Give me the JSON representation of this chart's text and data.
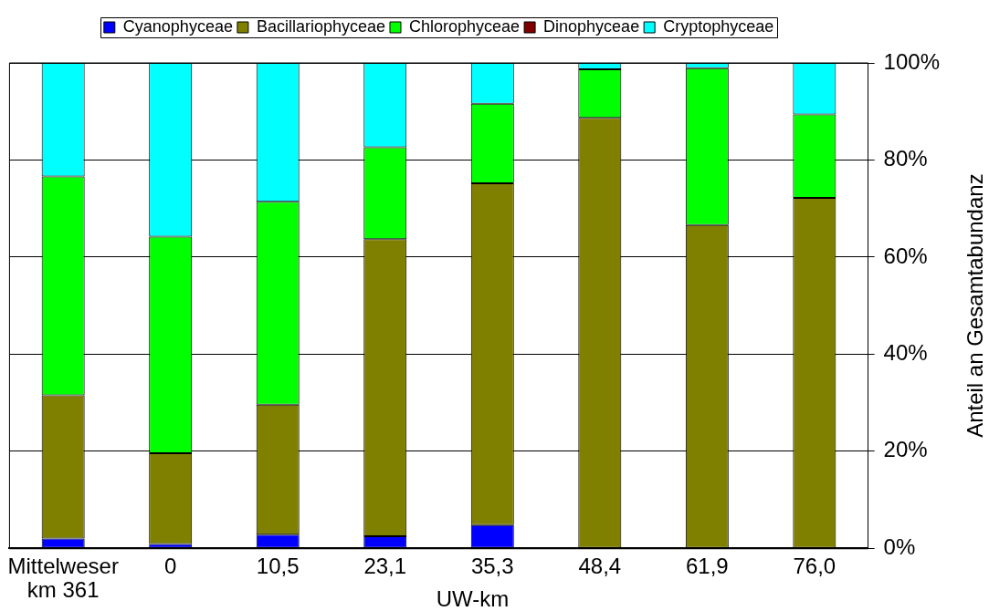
{
  "chart_data": {
    "type": "bar",
    "stacked": true,
    "categories": [
      "Mittelweser km 361",
      "0",
      "10,5",
      "23,1",
      "35,3",
      "48,4",
      "61,9",
      "76,0"
    ],
    "series": [
      {
        "name": "Cyanophyceae",
        "color": "#0000ff",
        "values": [
          2.0,
          0.9,
          2.8,
          2.5,
          4.8,
          0,
          0,
          0
        ]
      },
      {
        "name": "Bacillariophyceae",
        "color": "#808000",
        "values": [
          29.5,
          18.7,
          26.8,
          61.2,
          70.4,
          88.7,
          66.6,
          72.2
        ]
      },
      {
        "name": "Chlorophyceae",
        "color": "#00ff00",
        "values": [
          45.1,
          44.6,
          41.8,
          18.9,
          16.4,
          10.0,
          32.3,
          17.2
        ]
      },
      {
        "name": "Dinophyceae",
        "color": "#800000",
        "values": [
          0,
          0,
          0,
          0,
          0,
          0,
          0,
          0
        ]
      },
      {
        "name": "Cryptophyceae",
        "color": "#00ffff",
        "values": [
          23.4,
          35.8,
          28.6,
          17.4,
          8.4,
          1.3,
          1.1,
          10.6
        ]
      }
    ],
    "xlabel": "UW-km",
    "ylabel": "Anteil an Gesamtabundanz",
    "ylim": [
      0,
      100
    ],
    "yticks": [
      {
        "value": 0,
        "label": "0%"
      },
      {
        "value": 20,
        "label": "20%"
      },
      {
        "value": 40,
        "label": "40%"
      },
      {
        "value": 60,
        "label": "60%"
      },
      {
        "value": 80,
        "label": "80%"
      },
      {
        "value": 100,
        "label": "100%"
      }
    ],
    "grid": "y",
    "legend": "top"
  }
}
